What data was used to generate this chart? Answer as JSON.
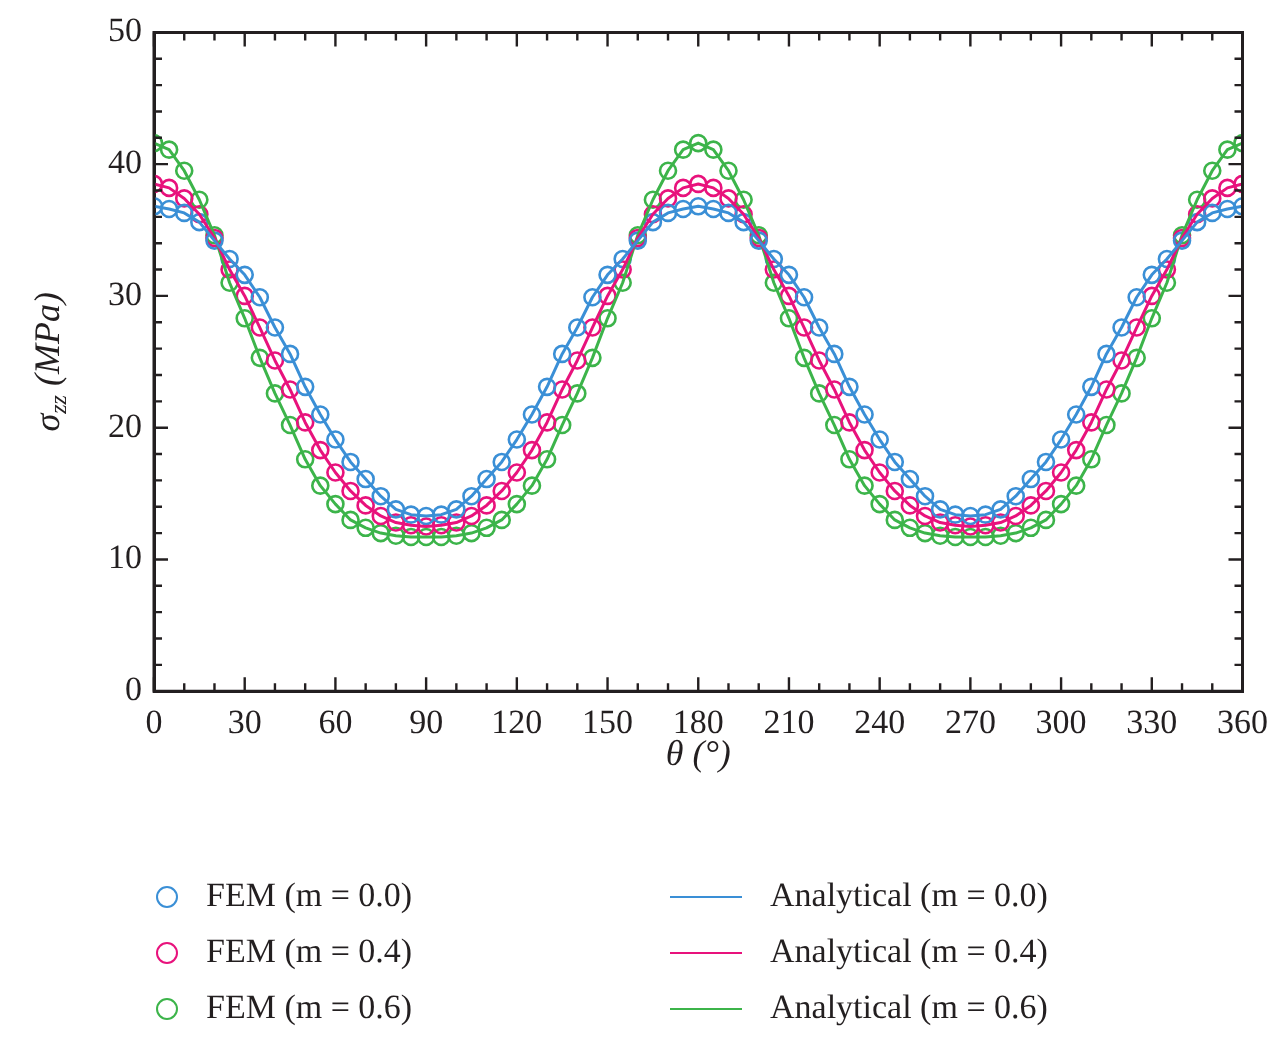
{
  "chart_data": {
    "type": "line",
    "xlabel": "θ (°)",
    "ylabel": "σ$_{zz}$ (MPa)",
    "x": [
      0,
      5,
      10,
      15,
      20,
      25,
      30,
      35,
      40,
      45,
      50,
      55,
      60,
      65,
      70,
      75,
      80,
      85,
      90,
      95,
      100,
      105,
      110,
      115,
      120,
      125,
      130,
      135,
      140,
      145,
      150,
      155,
      160,
      165,
      170,
      175,
      180,
      185,
      190,
      195,
      200,
      205,
      210,
      215,
      220,
      225,
      230,
      235,
      240,
      245,
      250,
      255,
      260,
      265,
      270,
      275,
      280,
      285,
      290,
      295,
      300,
      305,
      310,
      315,
      320,
      325,
      330,
      335,
      340,
      345,
      350,
      355,
      360
    ],
    "xlim": [
      0,
      360
    ],
    "xticks": [
      0,
      {
        "value": 10,
        "label": null
      },
      {
        "value": 20,
        "label": null
      },
      30,
      {
        "value": 40,
        "label": null
      },
      {
        "value": 50,
        "label": null
      },
      60,
      {
        "value": 70,
        "label": null
      },
      {
        "value": 80,
        "label": null
      },
      90,
      {
        "value": 100,
        "label": null
      },
      {
        "value": 110,
        "label": null
      },
      120,
      {
        "value": 130,
        "label": null
      },
      {
        "value": 140,
        "label": null
      },
      150,
      {
        "value": 160,
        "label": null
      },
      {
        "value": 170,
        "label": null
      },
      180,
      {
        "value": 190,
        "label": null
      },
      {
        "value": 200,
        "label": null
      },
      210,
      {
        "value": 220,
        "label": null
      },
      {
        "value": 230,
        "label": null
      },
      240,
      {
        "value": 250,
        "label": null
      },
      {
        "value": 260,
        "label": null
      },
      270,
      {
        "value": 280,
        "label": null
      },
      {
        "value": 290,
        "label": null
      },
      300,
      {
        "value": 310,
        "label": null
      },
      {
        "value": 320,
        "label": null
      },
      330,
      {
        "value": 340,
        "label": null
      },
      {
        "value": 350,
        "label": null
      },
      360
    ],
    "ylim": [
      0,
      50
    ],
    "yticks": [
      0,
      {
        "value": 2,
        "label": null
      },
      {
        "value": 4,
        "label": null
      },
      {
        "value": 6,
        "label": null
      },
      {
        "value": 8,
        "label": null
      },
      10,
      {
        "value": 12,
        "label": null
      },
      {
        "value": 14,
        "label": null
      },
      {
        "value": 16,
        "label": null
      },
      {
        "value": 18,
        "label": null
      },
      20,
      {
        "value": 22,
        "label": null
      },
      {
        "value": 24,
        "label": null
      },
      {
        "value": 26,
        "label": null
      },
      {
        "value": 28,
        "label": null
      },
      30,
      {
        "value": 32,
        "label": null
      },
      {
        "value": 34,
        "label": null
      },
      {
        "value": 36,
        "label": null
      },
      {
        "value": 38,
        "label": null
      },
      40,
      {
        "value": 42,
        "label": null
      },
      {
        "value": 44,
        "label": null
      },
      {
        "value": 46,
        "label": null
      },
      {
        "value": 48,
        "label": null
      },
      50
    ],
    "grid": false,
    "legend": "bottom",
    "series": [
      {
        "name": "FEM (m = 0.0)",
        "type": "scatter",
        "marker": "circle",
        "color": "#3a8fd6",
        "values": [
          36.8,
          36.6,
          36.3,
          35.6,
          34.2,
          32.8,
          31.6,
          29.9,
          27.6,
          25.6,
          23.1,
          21.0,
          19.1,
          17.4,
          16.1,
          14.8,
          13.8,
          13.4,
          13.3,
          13.4,
          13.8,
          14.8,
          16.1,
          17.4,
          19.1,
          21.0,
          23.1,
          25.6,
          27.6,
          29.9,
          31.6,
          32.8,
          34.2,
          35.6,
          36.3,
          36.6,
          36.8,
          36.6,
          36.3,
          35.6,
          34.2,
          32.8,
          31.6,
          29.9,
          27.6,
          25.6,
          23.1,
          21.0,
          19.1,
          17.4,
          16.1,
          14.8,
          13.8,
          13.4,
          13.3,
          13.4,
          13.8,
          14.8,
          16.1,
          17.4,
          19.1,
          21.0,
          23.1,
          25.6,
          27.6,
          29.9,
          31.6,
          32.8,
          34.2,
          35.6,
          36.3,
          36.6,
          36.8
        ]
      },
      {
        "name": "FEM (m = 0.4)",
        "type": "scatter",
        "marker": "circle",
        "color": "#e8127c",
        "values": [
          38.5,
          38.2,
          37.4,
          36.2,
          34.4,
          32.0,
          30.0,
          27.6,
          25.1,
          22.9,
          20.4,
          18.3,
          16.6,
          15.2,
          14.1,
          13.3,
          12.8,
          12.6,
          12.5,
          12.6,
          12.8,
          13.3,
          14.1,
          15.2,
          16.6,
          18.3,
          20.4,
          22.9,
          25.1,
          27.6,
          30.0,
          32.0,
          34.4,
          36.2,
          37.4,
          38.2,
          38.5,
          38.2,
          37.4,
          36.2,
          34.4,
          32.0,
          30.0,
          27.6,
          25.1,
          22.9,
          20.4,
          18.3,
          16.6,
          15.2,
          14.1,
          13.3,
          12.8,
          12.6,
          12.5,
          12.6,
          12.8,
          13.3,
          14.1,
          15.2,
          16.6,
          18.3,
          20.4,
          22.9,
          25.1,
          27.6,
          30.0,
          32.0,
          34.4,
          36.2,
          37.4,
          38.2,
          38.5
        ]
      },
      {
        "name": "FEM (m = 0.6)",
        "type": "scatter",
        "marker": "circle",
        "color": "#3cb44a",
        "values": [
          41.6,
          41.1,
          39.5,
          37.3,
          34.6,
          31.0,
          28.3,
          25.3,
          22.6,
          20.2,
          17.6,
          15.6,
          14.2,
          13.0,
          12.4,
          12.0,
          11.8,
          11.7,
          11.7,
          11.7,
          11.8,
          12.0,
          12.4,
          13.0,
          14.2,
          15.6,
          17.6,
          20.2,
          22.6,
          25.3,
          28.3,
          31.0,
          34.6,
          37.3,
          39.5,
          41.1,
          41.6,
          41.1,
          39.5,
          37.3,
          34.6,
          31.0,
          28.3,
          25.3,
          22.6,
          20.2,
          17.6,
          15.6,
          14.2,
          13.0,
          12.4,
          12.0,
          11.8,
          11.7,
          11.7,
          11.7,
          11.8,
          12.0,
          12.4,
          13.0,
          14.2,
          15.6,
          17.6,
          20.2,
          22.6,
          25.3,
          28.3,
          31.0,
          34.6,
          37.3,
          39.5,
          41.1,
          41.6
        ]
      },
      {
        "name": "Analytical (m = 0.0)",
        "type": "line",
        "marker": "none",
        "color": "#3a8fd6",
        "values": [
          36.8,
          36.6,
          36.3,
          35.6,
          34.2,
          32.8,
          31.6,
          29.9,
          27.6,
          25.6,
          23.1,
          21.0,
          19.1,
          17.4,
          16.1,
          14.8,
          13.8,
          13.4,
          13.3,
          13.4,
          13.8,
          14.8,
          16.1,
          17.4,
          19.1,
          21.0,
          23.1,
          25.6,
          27.6,
          29.9,
          31.6,
          32.8,
          34.2,
          35.6,
          36.3,
          36.6,
          36.8,
          36.6,
          36.3,
          35.6,
          34.2,
          32.8,
          31.6,
          29.9,
          27.6,
          25.6,
          23.1,
          21.0,
          19.1,
          17.4,
          16.1,
          14.8,
          13.8,
          13.4,
          13.3,
          13.4,
          13.8,
          14.8,
          16.1,
          17.4,
          19.1,
          21.0,
          23.1,
          25.6,
          27.6,
          29.9,
          31.6,
          32.8,
          34.2,
          35.6,
          36.3,
          36.6,
          36.8
        ]
      },
      {
        "name": "Analytical (m = 0.4)",
        "type": "line",
        "marker": "none",
        "color": "#e8127c",
        "values": [
          38.5,
          38.2,
          37.4,
          36.2,
          34.4,
          32.0,
          30.0,
          27.6,
          25.1,
          22.9,
          20.4,
          18.3,
          16.6,
          15.2,
          14.1,
          13.3,
          12.8,
          12.6,
          12.5,
          12.6,
          12.8,
          13.3,
          14.1,
          15.2,
          16.6,
          18.3,
          20.4,
          22.9,
          25.1,
          27.6,
          30.0,
          32.0,
          34.4,
          36.2,
          37.4,
          38.2,
          38.5,
          38.2,
          37.4,
          36.2,
          34.4,
          32.0,
          30.0,
          27.6,
          25.1,
          22.9,
          20.4,
          18.3,
          16.6,
          15.2,
          14.1,
          13.3,
          12.8,
          12.6,
          12.5,
          12.6,
          12.8,
          13.3,
          14.1,
          15.2,
          16.6,
          18.3,
          20.4,
          22.9,
          25.1,
          27.6,
          30.0,
          32.0,
          34.4,
          36.2,
          37.4,
          38.2,
          38.5
        ]
      },
      {
        "name": "Analytical (m = 0.6)",
        "type": "line",
        "marker": "none",
        "color": "#3cb44a",
        "values": [
          41.6,
          41.1,
          39.5,
          37.3,
          34.6,
          31.0,
          28.3,
          25.3,
          22.6,
          20.2,
          17.6,
          15.6,
          14.2,
          13.0,
          12.4,
          12.0,
          11.8,
          11.7,
          11.7,
          11.7,
          11.8,
          12.0,
          12.4,
          13.0,
          14.2,
          15.6,
          17.6,
          20.2,
          22.6,
          25.3,
          28.3,
          31.0,
          34.6,
          37.3,
          39.5,
          41.1,
          41.6,
          41.1,
          39.5,
          37.3,
          34.6,
          31.0,
          28.3,
          25.3,
          22.6,
          20.2,
          17.6,
          15.6,
          14.2,
          13.0,
          12.4,
          12.0,
          11.8,
          11.7,
          11.7,
          11.7,
          11.8,
          12.0,
          12.4,
          13.0,
          14.2,
          15.6,
          17.6,
          20.2,
          22.6,
          25.3,
          28.3,
          31.0,
          34.6,
          37.3,
          39.5,
          41.1,
          41.6
        ]
      }
    ]
  }
}
